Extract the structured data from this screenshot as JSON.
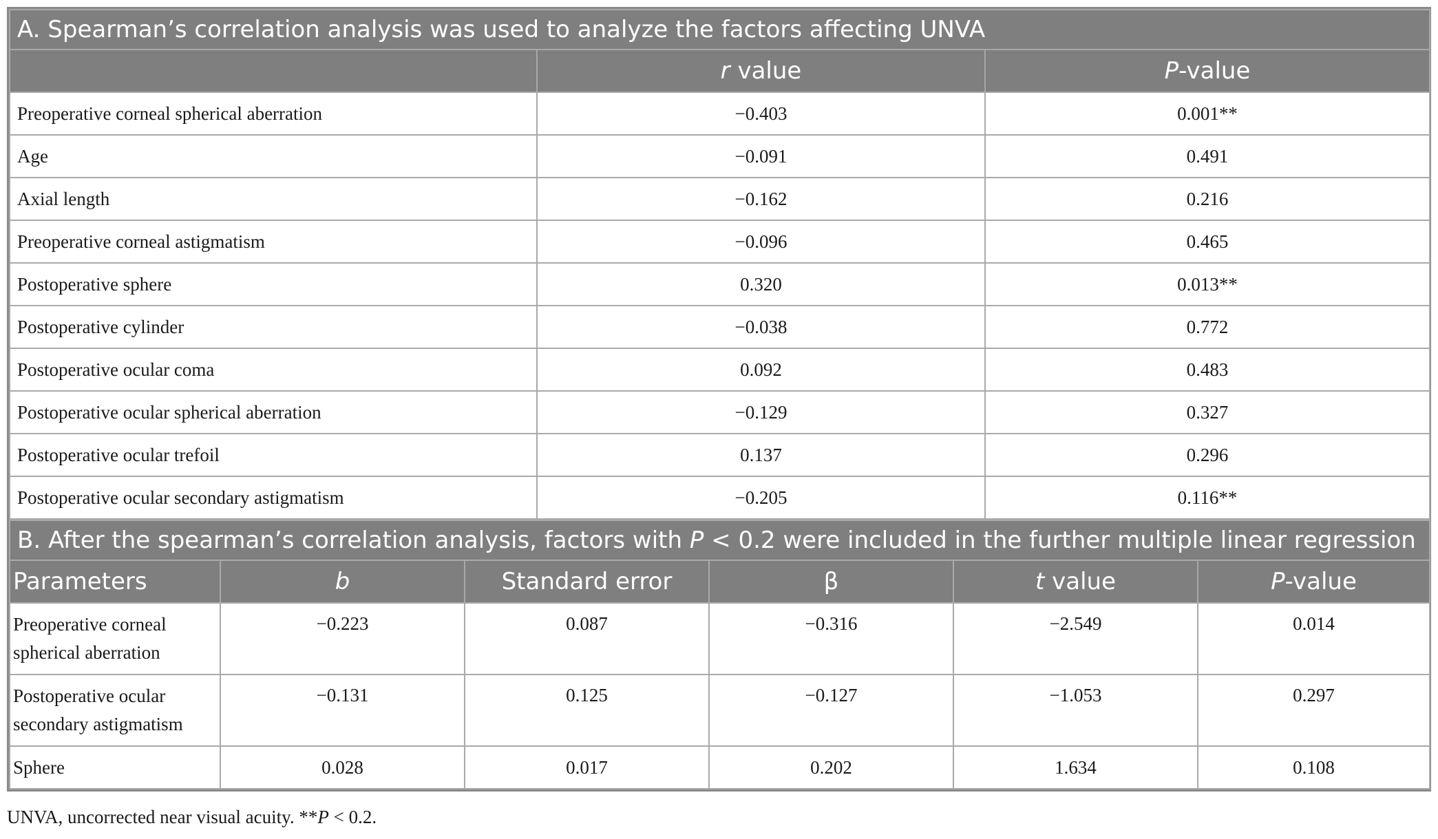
{
  "sectionA": {
    "title": "A. Spearman’s correlation analysis was used to analyze the factors affecting UNVA",
    "headers": {
      "param": "",
      "r_italic": "r",
      "r_rest": " value",
      "p_italic": "P",
      "p_rest": "-value"
    },
    "rows": [
      {
        "param": "Preoperative corneal spherical aberration",
        "r": "−0.403",
        "p": "0.001**"
      },
      {
        "param": "Age",
        "r": "−0.091",
        "p": "0.491"
      },
      {
        "param": "Axial length",
        "r": "−0.162",
        "p": "0.216"
      },
      {
        "param": "Preoperative corneal astigmatism",
        "r": "−0.096",
        "p": "0.465"
      },
      {
        "param": "Postoperative sphere",
        "r": "0.320",
        "p": "0.013**"
      },
      {
        "param": "Postoperative cylinder",
        "r": "−0.038",
        "p": "0.772"
      },
      {
        "param": "Postoperative ocular coma",
        "r": "0.092",
        "p": "0.483"
      },
      {
        "param": "Postoperative ocular spherical aberration",
        "r": "−0.129",
        "p": "0.327"
      },
      {
        "param": "Postoperative ocular trefoil",
        "r": "0.137",
        "p": "0.296"
      },
      {
        "param": "Postoperative ocular secondary astigmatism",
        "r": "−0.205",
        "p": "0.116**"
      }
    ]
  },
  "sectionB": {
    "title_pre": "B. After the spearman’s correlation analysis, factors with ",
    "title_italic": "P",
    "title_post": " < 0.2 were included in the further multiple linear regression",
    "headers": {
      "param": "Parameters",
      "b": "b",
      "se": "Standard error",
      "beta": "β",
      "t_italic": "t",
      "t_rest": " value",
      "p_italic": "P",
      "p_rest": "-value"
    },
    "rows": [
      {
        "param_line1": "Preoperative corneal",
        "param_line2": "spherical aberration",
        "b": "−0.223",
        "se": "0.087",
        "beta": "−0.316",
        "t": "−2.549",
        "p": "0.014"
      },
      {
        "param_line1": "Postoperative ocular",
        "param_line2": "secondary astigmatism",
        "b": "−0.131",
        "se": "0.125",
        "beta": "−0.127",
        "t": "−1.053",
        "p": "0.297"
      },
      {
        "param_line1": "Sphere",
        "param_line2": "",
        "b": "0.028",
        "se": "0.017",
        "beta": "0.202",
        "t": "1.634",
        "p": "0.108"
      }
    ]
  },
  "footnote": {
    "pre": "UNVA, uncorrected near visual acuity. **",
    "italic": "P",
    "post": " < 0.2."
  }
}
